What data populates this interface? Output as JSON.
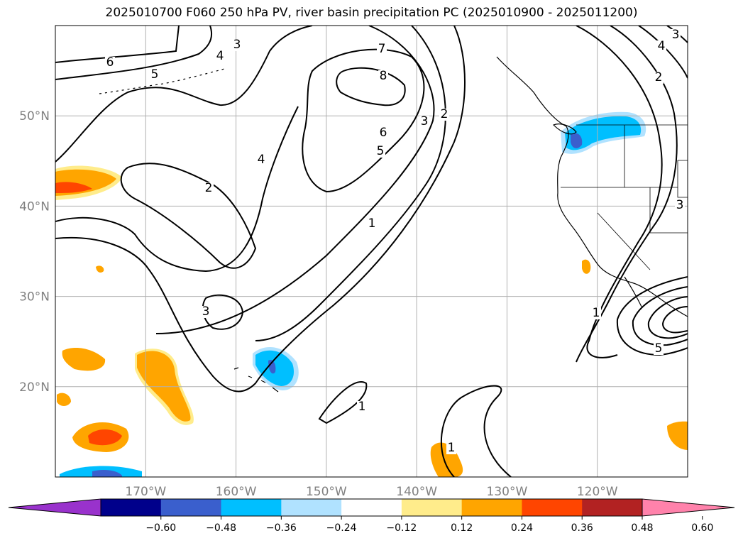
{
  "title": "2025010700 F060 250 hPa PV, river basin precipitation PC (2025010900 - 2025011200)",
  "map": {
    "lat_ticks": [
      {
        "value": 50,
        "label": "50°N"
      },
      {
        "value": 40,
        "label": "40°N"
      },
      {
        "value": 30,
        "label": "30°N"
      },
      {
        "value": 20,
        "label": "20°N"
      }
    ],
    "lon_ticks": [
      {
        "value": -170,
        "label": "170°W"
      },
      {
        "value": -160,
        "label": "160°W"
      },
      {
        "value": -150,
        "label": "150°W"
      },
      {
        "value": -140,
        "label": "140°W"
      },
      {
        "value": -130,
        "label": "130°W"
      },
      {
        "value": -120,
        "label": "120°W"
      }
    ],
    "extent": {
      "lon_min": -180,
      "lon_max": -110,
      "lat_min": 10,
      "lat_max": 60
    },
    "grid": true,
    "contour_labels": [
      "6",
      "5",
      "4",
      "3",
      "7",
      "8",
      "2",
      "6",
      "5",
      "3",
      "2",
      "4",
      "2",
      "1",
      "3",
      "5",
      "1",
      "1",
      "1",
      "3",
      "4",
      "3"
    ],
    "colors": {
      "land_outline": "#000000",
      "contour": "#000000",
      "grid": "#b0b0b0"
    }
  },
  "colorbar": {
    "ticks": [
      "−0.60",
      "−0.48",
      "−0.36",
      "−0.24",
      "−0.12",
      "0.12",
      "0.24",
      "0.36",
      "0.48",
      "0.60"
    ],
    "colors": [
      "#9932cc",
      "#00008b",
      "#3a5fcd",
      "#00bfff",
      "#b0e2ff",
      "#ffffff",
      "#ffec8b",
      "#ffa500",
      "#ff4500",
      "#b22222",
      "#ff82ab"
    ]
  }
}
